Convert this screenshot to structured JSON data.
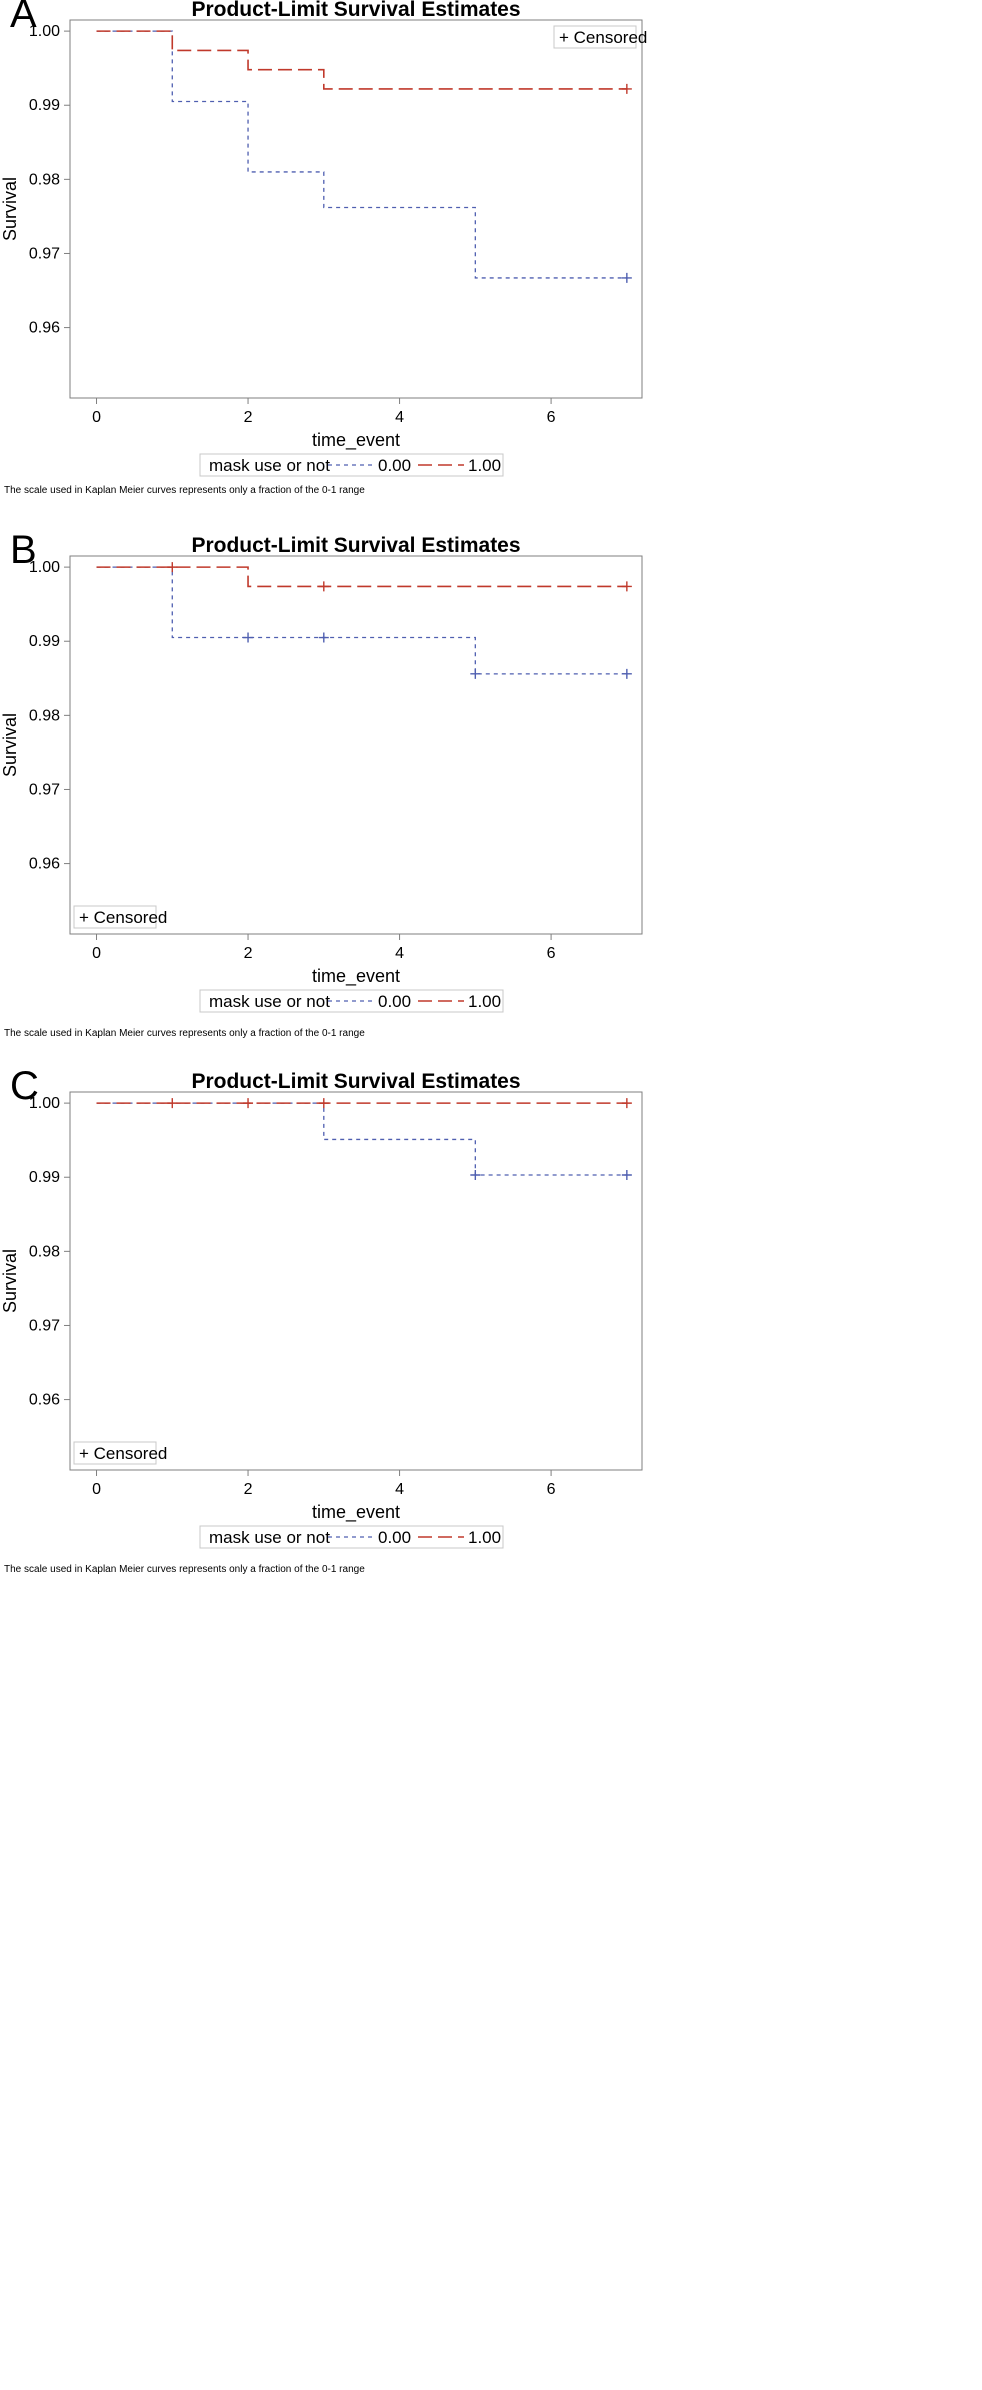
{
  "footnote": "The scale used in Kaplan Meier curves represents only a fraction of the 0-1 range",
  "colors": {
    "series_0": "#4f5fb0",
    "series_1": "#c0392b",
    "frame": "#7f7f7f"
  },
  "chart_data": [
    {
      "panel_label": "A",
      "type": "line",
      "step": true,
      "title": "Product-Limit Survival Estimates",
      "xlabel": "time_event",
      "ylabel": "Survival",
      "xlim": [
        -0.35,
        7.2
      ],
      "ylim": [
        0.9505,
        1.0015
      ],
      "xticks": [
        0,
        2,
        4,
        6
      ],
      "yticks": [
        1.0,
        0.99,
        0.98,
        0.97,
        0.96
      ],
      "ytick_labels": [
        "1.00",
        "0.99",
        "0.98",
        "0.97",
        "0.96"
      ],
      "censored_label": "+ Censored",
      "censored_legend_position": "top-right",
      "legend": {
        "title": "mask use or not",
        "entries": [
          "0.00",
          "1.00"
        ]
      },
      "series": [
        {
          "name": "0.00",
          "style": "short-dash",
          "x": [
            0,
            1,
            2,
            3,
            5,
            7
          ],
          "y": [
            1.0,
            0.9905,
            0.981,
            0.9762,
            0.9667,
            0.9667
          ],
          "censored": [
            [
              7,
              0.9667
            ]
          ]
        },
        {
          "name": "1.00",
          "style": "long-dash",
          "x": [
            0,
            1,
            2,
            3,
            7
          ],
          "y": [
            1.0,
            0.9974,
            0.9948,
            0.9922,
            0.9922
          ],
          "censored": [
            [
              7,
              0.9922
            ]
          ]
        }
      ]
    },
    {
      "panel_label": "B",
      "type": "line",
      "step": true,
      "title": "Product-Limit Survival Estimates",
      "xlabel": "time_event",
      "ylabel": "Survival",
      "xlim": [
        -0.35,
        7.2
      ],
      "ylim": [
        0.9505,
        1.0015
      ],
      "xticks": [
        0,
        2,
        4,
        6
      ],
      "yticks": [
        1.0,
        0.99,
        0.98,
        0.97,
        0.96
      ],
      "ytick_labels": [
        "1.00",
        "0.99",
        "0.98",
        "0.97",
        "0.96"
      ],
      "censored_label": "+ Censored",
      "censored_legend_position": "bottom-left",
      "legend": {
        "title": "mask use or not",
        "entries": [
          "0.00",
          "1.00"
        ]
      },
      "series": [
        {
          "name": "0.00",
          "style": "short-dash",
          "x": [
            0,
            1,
            5,
            7
          ],
          "y": [
            1.0,
            0.9905,
            0.9856,
            0.9856
          ],
          "censored": [
            [
              2,
              0.9905
            ],
            [
              3,
              0.9905
            ],
            [
              5,
              0.9856
            ],
            [
              7,
              0.9856
            ]
          ]
        },
        {
          "name": "1.00",
          "style": "long-dash",
          "x": [
            0,
            2,
            7
          ],
          "y": [
            1.0,
            0.9974,
            0.9974
          ],
          "censored": [
            [
              1,
              1.0
            ],
            [
              3,
              0.9974
            ],
            [
              7,
              0.9974
            ]
          ]
        }
      ]
    },
    {
      "panel_label": "C",
      "type": "line",
      "step": true,
      "title": "Product-Limit Survival Estimates",
      "xlabel": "time_event",
      "ylabel": "Survival",
      "xlim": [
        -0.35,
        7.2
      ],
      "ylim": [
        0.9505,
        1.0015
      ],
      "xticks": [
        0,
        2,
        4,
        6
      ],
      "yticks": [
        1.0,
        0.99,
        0.98,
        0.97,
        0.96
      ],
      "ytick_labels": [
        "1.00",
        "0.99",
        "0.98",
        "0.97",
        "0.96"
      ],
      "censored_label": "+ Censored",
      "censored_legend_position": "bottom-left",
      "legend": {
        "title": "mask use or not",
        "entries": [
          "0.00",
          "1.00"
        ]
      },
      "series": [
        {
          "name": "0.00",
          "style": "short-dash",
          "x": [
            0,
            3,
            5,
            7
          ],
          "y": [
            1.0,
            0.9951,
            0.9903,
            0.9903
          ],
          "censored": [
            [
              5,
              0.9903
            ],
            [
              7,
              0.9903
            ]
          ]
        },
        {
          "name": "1.00",
          "style": "long-dash",
          "x": [
            0,
            7
          ],
          "y": [
            1.0,
            1.0
          ],
          "censored": [
            [
              1,
              1.0
            ],
            [
              2,
              1.0
            ],
            [
              3,
              1.0
            ],
            [
              7,
              1.0
            ]
          ]
        }
      ]
    }
  ]
}
